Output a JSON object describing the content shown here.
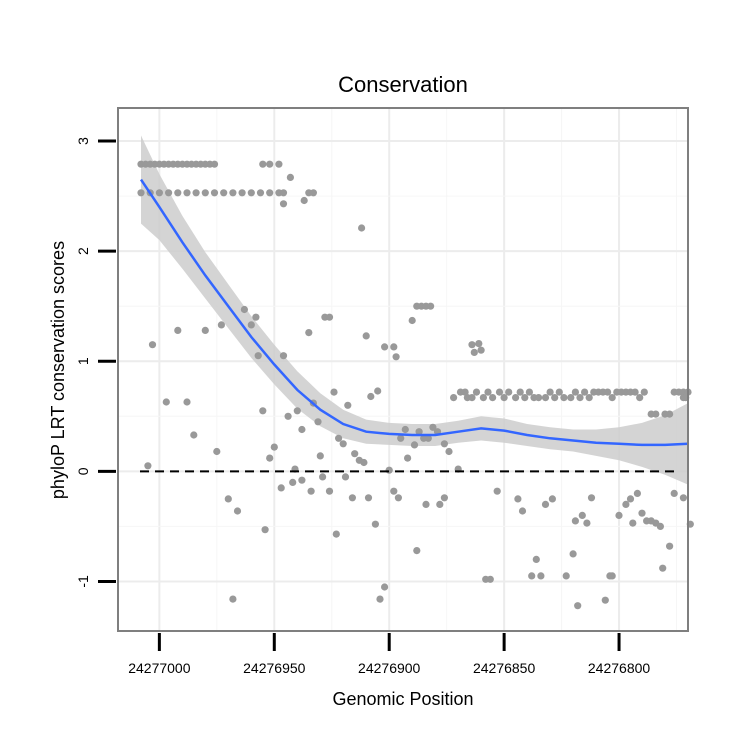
{
  "chart_data": {
    "type": "scatter",
    "title": "Conservation",
    "xlabel": "Genomic Position",
    "ylabel": "phyloP LRT conservation scores",
    "x_reversed": true,
    "xlim": [
      24277018,
      24276770
    ],
    "ylim": [
      -1.45,
      3.3
    ],
    "x_ticks": [
      24277000,
      24276950,
      24276900,
      24276850,
      24276800
    ],
    "x_tick_labels": [
      "24277000",
      "24276950",
      "24276900",
      "24276850",
      "24276800"
    ],
    "y_ticks": [
      -1,
      0,
      1,
      2,
      3
    ],
    "y_tick_labels": [
      "-1",
      "0",
      "1",
      "2",
      "3"
    ],
    "reference_line": {
      "y": 0,
      "style": "dashed",
      "color": "#000000"
    },
    "colors": {
      "points": "#999999",
      "smooth": "#3366ff",
      "band": "#cccccc",
      "border": "#7f7f7f"
    },
    "points": [
      [
        24277008,
        2.79
      ],
      [
        24277006,
        2.79
      ],
      [
        24277004,
        2.79
      ],
      [
        24277002,
        2.79
      ],
      [
        24277000,
        2.79
      ],
      [
        24276998,
        2.79
      ],
      [
        24276996,
        2.79
      ],
      [
        24276994,
        2.79
      ],
      [
        24276992,
        2.79
      ],
      [
        24276990,
        2.79
      ],
      [
        24276988,
        2.79
      ],
      [
        24276986,
        2.79
      ],
      [
        24276984,
        2.79
      ],
      [
        24276982,
        2.79
      ],
      [
        24276980,
        2.79
      ],
      [
        24276978,
        2.79
      ],
      [
        24276976,
        2.79
      ],
      [
        24277008,
        2.53
      ],
      [
        24277004,
        2.53
      ],
      [
        24277000,
        2.53
      ],
      [
        24276996,
        2.53
      ],
      [
        24276992,
        2.53
      ],
      [
        24276988,
        2.53
      ],
      [
        24276984,
        2.53
      ],
      [
        24276980,
        2.53
      ],
      [
        24276976,
        2.53
      ],
      [
        24276972,
        2.53
      ],
      [
        24276968,
        2.53
      ],
      [
        24276964,
        2.53
      ],
      [
        24276960,
        2.53
      ],
      [
        24276956,
        2.53
      ],
      [
        24276952,
        2.53
      ],
      [
        24276948,
        2.53
      ],
      [
        24276946,
        2.53
      ],
      [
        24276955,
        2.79
      ],
      [
        24276952,
        2.79
      ],
      [
        24276948,
        2.79
      ],
      [
        24276943,
        2.67
      ],
      [
        24276946,
        2.43
      ],
      [
        24276937,
        2.46
      ],
      [
        24276935,
        2.53
      ],
      [
        24276933,
        2.53
      ],
      [
        24276912,
        2.21
      ],
      [
        24277005,
        0.05
      ],
      [
        24277003,
        1.15
      ],
      [
        24276997,
        0.63
      ],
      [
        24276992,
        1.28
      ],
      [
        24276988,
        0.63
      ],
      [
        24276985,
        0.33
      ],
      [
        24276980,
        1.28
      ],
      [
        24276973,
        1.33
      ],
      [
        24276975,
        0.18
      ],
      [
        24276970,
        -0.25
      ],
      [
        24276966,
        -0.36
      ],
      [
        24276968,
        -1.16
      ],
      [
        24276963,
        1.47
      ],
      [
        24276960,
        1.33
      ],
      [
        24276957,
        1.05
      ],
      [
        24276958,
        1.4
      ],
      [
        24276955,
        0.55
      ],
      [
        24276952,
        0.12
      ],
      [
        24276950,
        0.22
      ],
      [
        24276946,
        1.05
      ],
      [
        24276944,
        0.5
      ],
      [
        24276942,
        -0.1
      ],
      [
        24276940,
        0.55
      ],
      [
        24276938,
        0.38
      ],
      [
        24276935,
        1.26
      ],
      [
        24276933,
        0.62
      ],
      [
        24276931,
        0.45
      ],
      [
        24276930,
        0.14
      ],
      [
        24276928,
        1.4
      ],
      [
        24276926,
        1.4
      ],
      [
        24276924,
        0.72
      ],
      [
        24276922,
        0.3
      ],
      [
        24276920,
        0.25
      ],
      [
        24276918,
        0.6
      ],
      [
        24276915,
        0.16
      ],
      [
        24276913,
        0.1
      ],
      [
        24276911,
        0.08
      ],
      [
        24276954,
        -0.53
      ],
      [
        24276947,
        -0.15
      ],
      [
        24276941,
        0.02
      ],
      [
        24276938,
        -0.08
      ],
      [
        24276934,
        -0.18
      ],
      [
        24276929,
        -0.05
      ],
      [
        24276926,
        -0.18
      ],
      [
        24276923,
        -0.57
      ],
      [
        24276919,
        -0.05
      ],
      [
        24276916,
        -0.24
      ],
      [
        24276909,
        -0.24
      ],
      [
        24276906,
        -0.48
      ],
      [
        24276910,
        1.23
      ],
      [
        24276908,
        0.68
      ],
      [
        24276905,
        0.73
      ],
      [
        24276902,
        1.13
      ],
      [
        24276898,
        1.13
      ],
      [
        24276897,
        1.04
      ],
      [
        24276895,
        0.3
      ],
      [
        24276893,
        0.38
      ],
      [
        24276890,
        1.37
      ],
      [
        24276888,
        1.5
      ],
      [
        24276886,
        1.5
      ],
      [
        24276884,
        1.5
      ],
      [
        24276882,
        1.5
      ],
      [
        24276892,
        0.12
      ],
      [
        24276889,
        0.24
      ],
      [
        24276887,
        0.36
      ],
      [
        24276885,
        0.3
      ],
      [
        24276883,
        0.3
      ],
      [
        24276881,
        0.4
      ],
      [
        24276879,
        0.36
      ],
      [
        24276876,
        0.25
      ],
      [
        24276874,
        0.18
      ],
      [
        24276872,
        0.67
      ],
      [
        24276869,
        0.72
      ],
      [
        24276866,
        0.67
      ],
      [
        24276904,
        -1.16
      ],
      [
        24276902,
        -1.05
      ],
      [
        24276900,
        0.01
      ],
      [
        24276898,
        -0.18
      ],
      [
        24276896,
        -0.24
      ],
      [
        24276888,
        -0.72
      ],
      [
        24276884,
        -0.3
      ],
      [
        24276878,
        -0.3
      ],
      [
        24276876,
        -0.24
      ],
      [
        24276870,
        0.02
      ],
      [
        24276867,
        0.72
      ],
      [
        24276864,
        0.67
      ],
      [
        24276862,
        0.72
      ],
      [
        24276859,
        0.67
      ],
      [
        24276857,
        0.72
      ],
      [
        24276855,
        0.67
      ],
      [
        24276852,
        0.72
      ],
      [
        24276850,
        0.67
      ],
      [
        24276848,
        0.72
      ],
      [
        24276845,
        0.67
      ],
      [
        24276843,
        0.72
      ],
      [
        24276841,
        0.67
      ],
      [
        24276839,
        0.72
      ],
      [
        24276837,
        0.67
      ],
      [
        24276835,
        0.67
      ],
      [
        24276832,
        0.67
      ],
      [
        24276830,
        0.72
      ],
      [
        24276828,
        0.67
      ],
      [
        24276826,
        0.72
      ],
      [
        24276824,
        0.67
      ],
      [
        24276821,
        0.67
      ],
      [
        24276819,
        0.72
      ],
      [
        24276817,
        0.67
      ],
      [
        24276815,
        0.72
      ],
      [
        24276813,
        0.67
      ],
      [
        24276811,
        0.72
      ],
      [
        24276809,
        0.72
      ],
      [
        24276807,
        0.72
      ],
      [
        24276805,
        0.72
      ],
      [
        24276803,
        0.67
      ],
      [
        24276801,
        0.72
      ],
      [
        24276799,
        0.72
      ],
      [
        24276797,
        0.72
      ],
      [
        24276795,
        0.72
      ],
      [
        24276793,
        0.72
      ],
      [
        24276791,
        0.67
      ],
      [
        24276789,
        0.72
      ],
      [
        24276786,
        0.52
      ],
      [
        24276784,
        0.52
      ],
      [
        24276780,
        0.52
      ],
      [
        24276778,
        0.52
      ],
      [
        24276776,
        0.72
      ],
      [
        24276774,
        0.72
      ],
      [
        24276772,
        0.72
      ],
      [
        24276770,
        0.72
      ],
      [
        24276772,
        0.67
      ],
      [
        24276864,
        1.15
      ],
      [
        24276861,
        1.16
      ],
      [
        24276860,
        1.1
      ],
      [
        24276863,
        1.08
      ],
      [
        24276858,
        -0.98
      ],
      [
        24276856,
        -0.98
      ],
      [
        24276853,
        -0.18
      ],
      [
        24276844,
        -0.25
      ],
      [
        24276842,
        -0.36
      ],
      [
        24276838,
        -0.95
      ],
      [
        24276836,
        -0.8
      ],
      [
        24276834,
        -0.95
      ],
      [
        24276832,
        -0.3
      ],
      [
        24276829,
        -0.25
      ],
      [
        24276823,
        -0.95
      ],
      [
        24276820,
        -0.75
      ],
      [
        24276819,
        -0.45
      ],
      [
        24276818,
        -1.22
      ],
      [
        24276816,
        -0.4
      ],
      [
        24276814,
        -0.47
      ],
      [
        24276812,
        -0.24
      ],
      [
        24276806,
        -1.17
      ],
      [
        24276804,
        -0.95
      ],
      [
        24276803,
        -0.95
      ],
      [
        24276800,
        -0.4
      ],
      [
        24276797,
        -0.3
      ],
      [
        24276795,
        -0.25
      ],
      [
        24276794,
        -0.47
      ],
      [
        24276792,
        -0.2
      ],
      [
        24276790,
        -0.38
      ],
      [
        24276788,
        -0.45
      ],
      [
        24276786,
        -0.45
      ],
      [
        24276784,
        -0.47
      ],
      [
        24276782,
        -0.5
      ],
      [
        24276781,
        -0.88
      ],
      [
        24276778,
        -0.68
      ],
      [
        24276776,
        -0.2
      ],
      [
        24276772,
        -0.24
      ],
      [
        24276769,
        -0.48
      ],
      [
        24276771,
        0.67
      ]
    ],
    "smooth_curve": [
      [
        24277008,
        2.65
      ],
      [
        24277000,
        2.4
      ],
      [
        24276990,
        2.08
      ],
      [
        24276980,
        1.78
      ],
      [
        24276970,
        1.5
      ],
      [
        24276960,
        1.22
      ],
      [
        24276950,
        0.97
      ],
      [
        24276940,
        0.74
      ],
      [
        24276930,
        0.56
      ],
      [
        24276920,
        0.43
      ],
      [
        24276910,
        0.36
      ],
      [
        24276900,
        0.34
      ],
      [
        24276890,
        0.33
      ],
      [
        24276880,
        0.33
      ],
      [
        24276870,
        0.36
      ],
      [
        24276860,
        0.39
      ],
      [
        24276850,
        0.37
      ],
      [
        24276840,
        0.33
      ],
      [
        24276830,
        0.3
      ],
      [
        24276820,
        0.28
      ],
      [
        24276810,
        0.26
      ],
      [
        24276800,
        0.25
      ],
      [
        24276790,
        0.24
      ],
      [
        24276780,
        0.24
      ],
      [
        24276770,
        0.25
      ]
    ],
    "ci_halfwidth": [
      [
        24277008,
        0.4
      ],
      [
        24277000,
        0.3
      ],
      [
        24276990,
        0.24
      ],
      [
        24276980,
        0.21
      ],
      [
        24276970,
        0.2
      ],
      [
        24276960,
        0.19
      ],
      [
        24276950,
        0.18
      ],
      [
        24276940,
        0.17
      ],
      [
        24276930,
        0.15
      ],
      [
        24276920,
        0.13
      ],
      [
        24276910,
        0.11
      ],
      [
        24276900,
        0.1
      ],
      [
        24276890,
        0.1
      ],
      [
        24276880,
        0.1
      ],
      [
        24276870,
        0.1
      ],
      [
        24276860,
        0.11
      ],
      [
        24276850,
        0.11
      ],
      [
        24276840,
        0.1
      ],
      [
        24276830,
        0.1
      ],
      [
        24276820,
        0.1
      ],
      [
        24276810,
        0.12
      ],
      [
        24276800,
        0.15
      ],
      [
        24276790,
        0.2
      ],
      [
        24276780,
        0.27
      ],
      [
        24276770,
        0.37
      ]
    ]
  }
}
